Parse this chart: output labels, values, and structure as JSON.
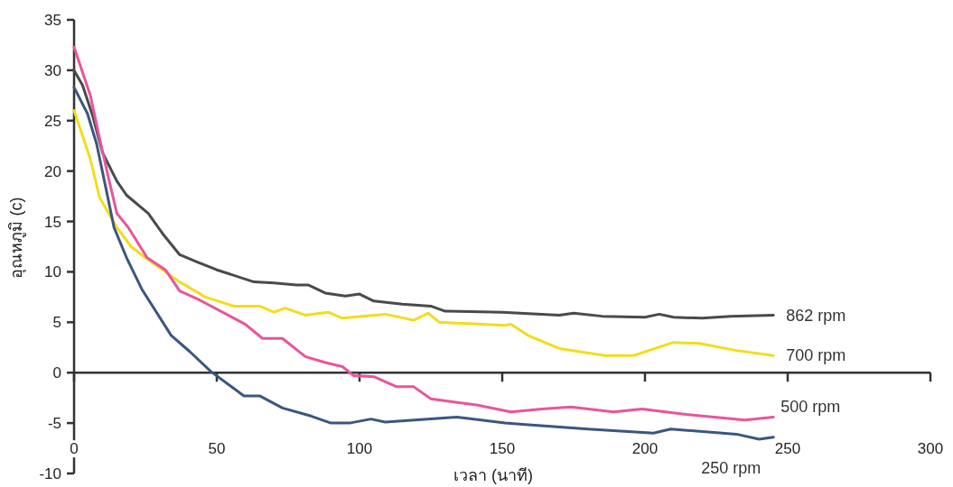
{
  "chart_data": {
    "type": "line",
    "xlabel": "เวลา (นาที)",
    "ylabel": "อุณหภูมิ (c)",
    "xlim": [
      0,
      300
    ],
    "ylim": [
      -10,
      35
    ],
    "xticks": [
      0,
      50,
      100,
      150,
      200,
      250,
      300
    ],
    "yticks": [
      -10,
      -5,
      0,
      5,
      10,
      15,
      20,
      25,
      30,
      35
    ],
    "marker": "none",
    "line_style": "solid",
    "series": [
      {
        "name": "862 rpm",
        "color": "#4a4a4a",
        "x": [
          0,
          3,
          6.6,
          10,
          15,
          18.4,
          26,
          31,
          37,
          43,
          50,
          63,
          70,
          78,
          82,
          88,
          95,
          100,
          105,
          115,
          125,
          130,
          150,
          170,
          175,
          185,
          200,
          205,
          210,
          220,
          230,
          245
        ],
        "values": [
          30,
          28.5,
          25.4,
          21.8,
          19,
          17.6,
          15.8,
          13.8,
          11.7,
          11,
          10.2,
          9,
          8.9,
          8.7,
          8.7,
          7.9,
          7.6,
          7.8,
          7.1,
          6.8,
          6.6,
          6.1,
          6,
          5.7,
          5.9,
          5.6,
          5.5,
          5.8,
          5.5,
          5.4,
          5.6,
          5.7
        ]
      },
      {
        "name": "700 rpm",
        "color": "#f2dd1c",
        "x": [
          0,
          5.7,
          8.9,
          15,
          20,
          25,
          37,
          46,
          56,
          65,
          70,
          74,
          81,
          89,
          94,
          109,
          119,
          124,
          128,
          151,
          153,
          159,
          170,
          186,
          196,
          210,
          219,
          232,
          245
        ],
        "values": [
          26,
          21.2,
          17.4,
          14.4,
          12.5,
          11.4,
          9,
          7.5,
          6.6,
          6.6,
          6,
          6.4,
          5.7,
          6,
          5.4,
          5.8,
          5.2,
          5.9,
          5,
          4.7,
          4.8,
          3.7,
          2.4,
          1.7,
          1.7,
          3,
          2.9,
          2.2,
          1.7
        ]
      },
      {
        "name": "500 rpm",
        "color": "#e8559a",
        "x": [
          0,
          5.7,
          8.9,
          12,
          15,
          19,
          25.6,
          32,
          37,
          44,
          56,
          60,
          66,
          73,
          81,
          88,
          94,
          98,
          105,
          113,
          119,
          125,
          141,
          153,
          164,
          174,
          189,
          199,
          213,
          235,
          245
        ],
        "values": [
          32.3,
          27.5,
          23.3,
          19.4,
          15.8,
          14.4,
          11.4,
          10.2,
          8.1,
          7.2,
          5.4,
          4.8,
          3.4,
          3.4,
          1.6,
          1,
          0.6,
          -0.3,
          -0.4,
          -1.4,
          -1.4,
          -2.6,
          -3.2,
          -3.9,
          -3.6,
          -3.4,
          -3.9,
          -3.6,
          -4.1,
          -4.7,
          -4.4
        ]
      },
      {
        "name": "250 rpm",
        "color": "#3b5680",
        "x": [
          0,
          4.7,
          7.9,
          11,
          14,
          18.4,
          23.7,
          34,
          40.5,
          48,
          59.5,
          65,
          73,
          83,
          90,
          96.5,
          104,
          109,
          134,
          151,
          156,
          180,
          203,
          209,
          232,
          240,
          245
        ],
        "values": [
          28.3,
          25.7,
          22.7,
          18.5,
          14.4,
          11.4,
          8.3,
          3.7,
          2.1,
          0.1,
          -2.3,
          -2.3,
          -3.5,
          -4.3,
          -5,
          -5,
          -4.6,
          -4.9,
          -4.4,
          -5,
          -5.1,
          -5.6,
          -6,
          -5.6,
          -6.1,
          -6.6,
          -6.4
        ]
      }
    ]
  }
}
